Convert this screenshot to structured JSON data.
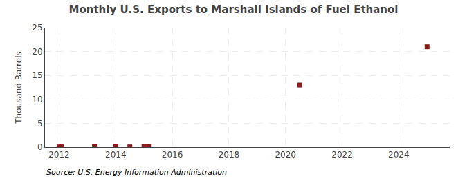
{
  "chart_data": {
    "type": "scatter",
    "title": "Monthly U.S. Exports to Marshall Islands of Fuel Ethanol",
    "ylabel": "Thousand Barrels",
    "annotations": [
      "Source: U.S. Energy Information Administration"
    ],
    "x": [
      2012.0,
      2012.08,
      2013.25,
      2014.0,
      2014.5,
      2015.0,
      2015.16,
      2020.5,
      2025.0
    ],
    "values": [
      0.05,
      0.05,
      0.15,
      0.1,
      0.05,
      0.2,
      0.15,
      13.0,
      21.0
    ],
    "color": "#8b1a1a",
    "marker": "square",
    "xlim": [
      2011.5,
      2025.8
    ],
    "xticks": [
      2012,
      2014,
      2016,
      2018,
      2020,
      2022,
      2024
    ],
    "ylim": [
      0,
      25
    ],
    "yticks": [
      0,
      5,
      10,
      15,
      20,
      25
    ],
    "grid": true
  }
}
